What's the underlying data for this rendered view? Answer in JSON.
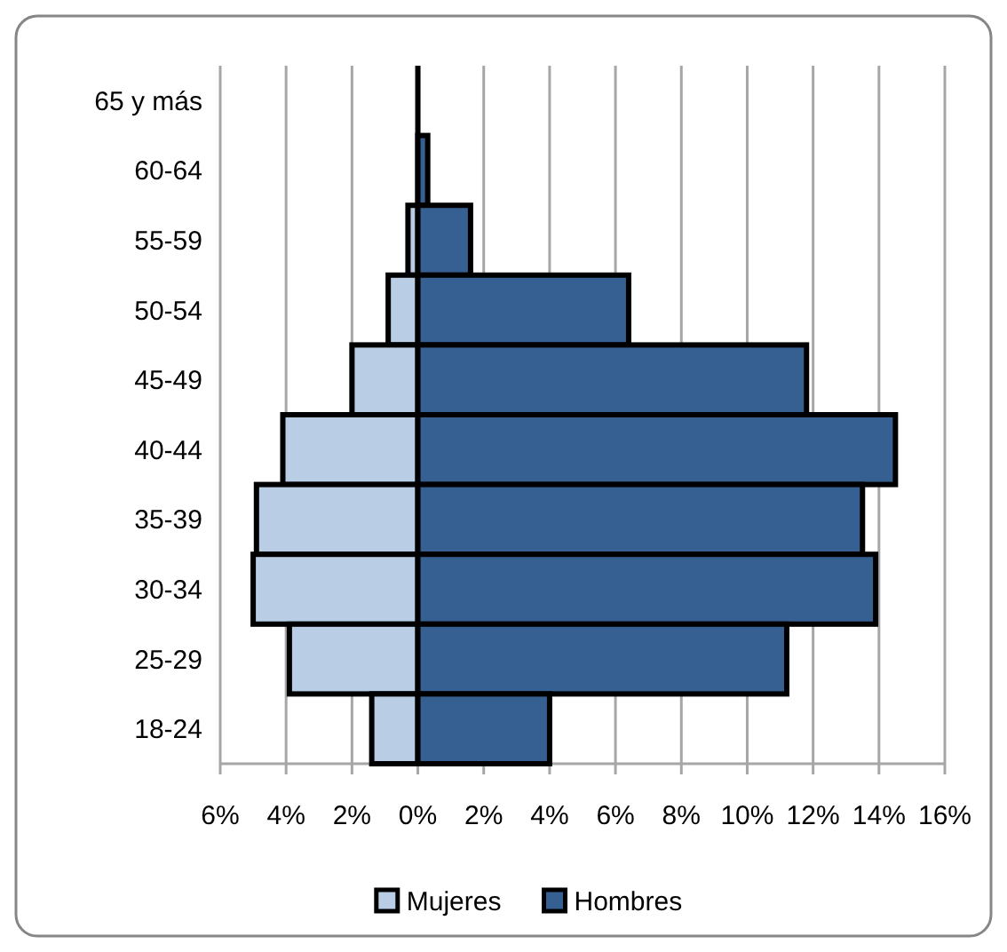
{
  "chart_data": {
    "type": "bar",
    "orientation": "horizontal",
    "stacked": true,
    "categories": [
      "65 y más",
      "60-64",
      "55-59",
      "50-54",
      "45-49",
      "40-44",
      "35-39",
      "30-34",
      "25-29",
      "18-24"
    ],
    "series": [
      {
        "name": "Mujeres",
        "color": "#b9cde5",
        "values": [
          0,
          0,
          -0.3,
          -0.9,
          -2.0,
          -4.1,
          -4.9,
          -5.0,
          -3.9,
          -1.4
        ]
      },
      {
        "name": "Hombres",
        "color": "#376092",
        "values": [
          0,
          0.3,
          1.6,
          6.4,
          11.8,
          14.5,
          13.5,
          13.9,
          11.2,
          4.0
        ]
      }
    ],
    "xlim": [
      -6,
      16
    ],
    "xticks": [
      {
        "value": -6,
        "label": "6%"
      },
      {
        "value": -4,
        "label": "4%"
      },
      {
        "value": -2,
        "label": "2%"
      },
      {
        "value": 0,
        "label": "0%"
      },
      {
        "value": 2,
        "label": "2%"
      },
      {
        "value": 4,
        "label": "4%"
      },
      {
        "value": 6,
        "label": "6%"
      },
      {
        "value": 8,
        "label": "8%"
      },
      {
        "value": 10,
        "label": "10%"
      },
      {
        "value": 12,
        "label": "12%"
      },
      {
        "value": 14,
        "label": "14%"
      },
      {
        "value": 16,
        "label": "16%"
      }
    ],
    "grid": "x",
    "legend": "bottom"
  }
}
